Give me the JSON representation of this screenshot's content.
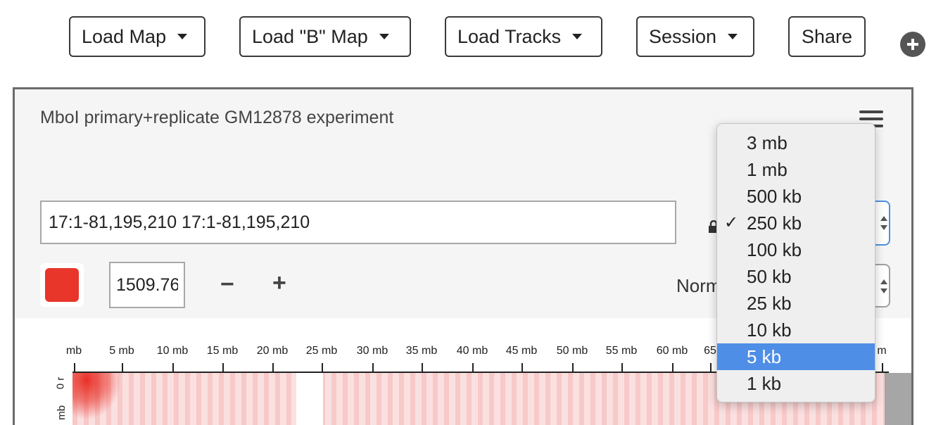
{
  "toolbar": {
    "load_map": "Load Map",
    "load_b_map": "Load \"B\" Map",
    "load_tracks": "Load Tracks",
    "session": "Session",
    "share": "Share"
  },
  "panel": {
    "title": "MboI primary+replicate GM12878 experiment",
    "locus_value": "17:1-81,195,210 17:1-81,195,210",
    "color_swatch": "#e8362a",
    "threshold_value": "1509.76",
    "minus": "−",
    "plus": "+",
    "normalization_label_partial": "Norm"
  },
  "resolution_menu": {
    "options": [
      "3 mb",
      "1 mb",
      "500 kb",
      "250 kb",
      "100 kb",
      "50 kb",
      "25 kb",
      "10 kb",
      "5 kb",
      "1 kb"
    ],
    "checked": "250 kb",
    "highlighted": "5 kb",
    "check_glyph": "✓"
  },
  "ruler": {
    "ticks": [
      "mb",
      "5 mb",
      "10 mb",
      "15 mb",
      "20 mb",
      "25 mb",
      "30 mb",
      "35 mb",
      "40 mb",
      "45 mb",
      "50 mb",
      "55 mb",
      "60 mb",
      "65",
      "m"
    ]
  },
  "left_axis": {
    "labels": [
      "0 r",
      "mb"
    ]
  },
  "colors": {
    "accent_highlight": "#4e8ee6",
    "heatmap_red": "#e8362a"
  }
}
